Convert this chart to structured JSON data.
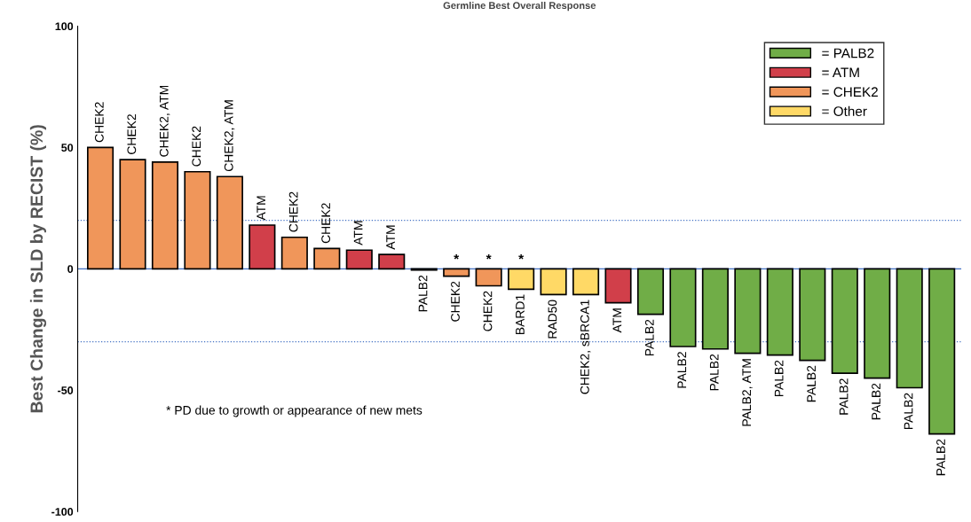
{
  "chart_data": {
    "type": "bar",
    "title": "Germline Best Overall Response",
    "ylabel": "Best Change in SLD by RECIST (%)",
    "categories": [
      "CHEK2",
      "CHEK2",
      "CHEK2, ATM",
      "CHEK2",
      "CHEK2, ATM",
      "ATM",
      "CHEK2",
      "CHEK2",
      "ATM",
      "ATM",
      "PALB2",
      "CHEK2",
      "CHEK2",
      "BARD1",
      "RAD50",
      "CHEK2, sBRCA1",
      "ATM",
      "PALB2",
      "PALB2",
      "PALB2",
      "PALB2, ATM",
      "PALB2",
      "PALB2",
      "PALB2",
      "PALB2",
      "PALB2",
      "PALB2"
    ],
    "series": [
      {
        "name": "= PALB2",
        "color": "#70ad47",
        "values": [
          null,
          null,
          null,
          null,
          null,
          null,
          null,
          null,
          null,
          null,
          -0.5,
          null,
          null,
          null,
          null,
          null,
          null,
          -18.7,
          -32,
          -33,
          -34.8,
          -35.5,
          -37.7,
          -43,
          -45,
          -49,
          -68
        ]
      },
      {
        "name": "= ATM",
        "color": "#d13f4a",
        "values": [
          null,
          null,
          null,
          null,
          null,
          18,
          null,
          null,
          7.7,
          5.9,
          null,
          null,
          null,
          null,
          null,
          null,
          -14,
          null,
          null,
          null,
          null,
          null,
          null,
          null,
          null,
          null,
          null
        ]
      },
      {
        "name": "= CHEK2",
        "color": "#f0965a",
        "values": [
          50,
          45,
          44,
          40,
          38,
          null,
          13,
          8.4,
          null,
          null,
          null,
          -3,
          -7,
          null,
          null,
          null,
          null,
          null,
          null,
          null,
          null,
          null,
          null,
          null,
          null,
          null,
          null
        ]
      },
      {
        "name": "= Other",
        "color": "#ffd966",
        "values": [
          null,
          null,
          null,
          null,
          null,
          null,
          null,
          null,
          null,
          null,
          null,
          null,
          null,
          -8.4,
          -10.6,
          -10.6,
          null,
          null,
          null,
          null,
          null,
          null,
          null,
          null,
          null,
          null,
          null
        ]
      }
    ],
    "value_labels": [
      null,
      null,
      null,
      null,
      null,
      null,
      null,
      null,
      null,
      null,
      null,
      "*",
      "*",
      "*",
      null,
      null,
      null,
      null,
      null,
      null,
      null,
      null,
      null,
      null,
      null,
      null,
      null
    ],
    "ylim": [
      -100,
      100
    ],
    "yticks": [
      -100,
      -50,
      0,
      50,
      100
    ],
    "ref_lines": [
      {
        "axis": "y",
        "value": 0,
        "color": "#4472c4",
        "line_style": "solid"
      },
      {
        "axis": "y",
        "value": 20,
        "color": "#4472c4",
        "line_style": "dotted"
      },
      {
        "axis": "y",
        "value": -30,
        "color": "#4472c4",
        "line_style": "dotted"
      }
    ],
    "annotations": [
      "* PD due to growth or appearance of new mets"
    ],
    "grid": false,
    "legend": "top right"
  }
}
